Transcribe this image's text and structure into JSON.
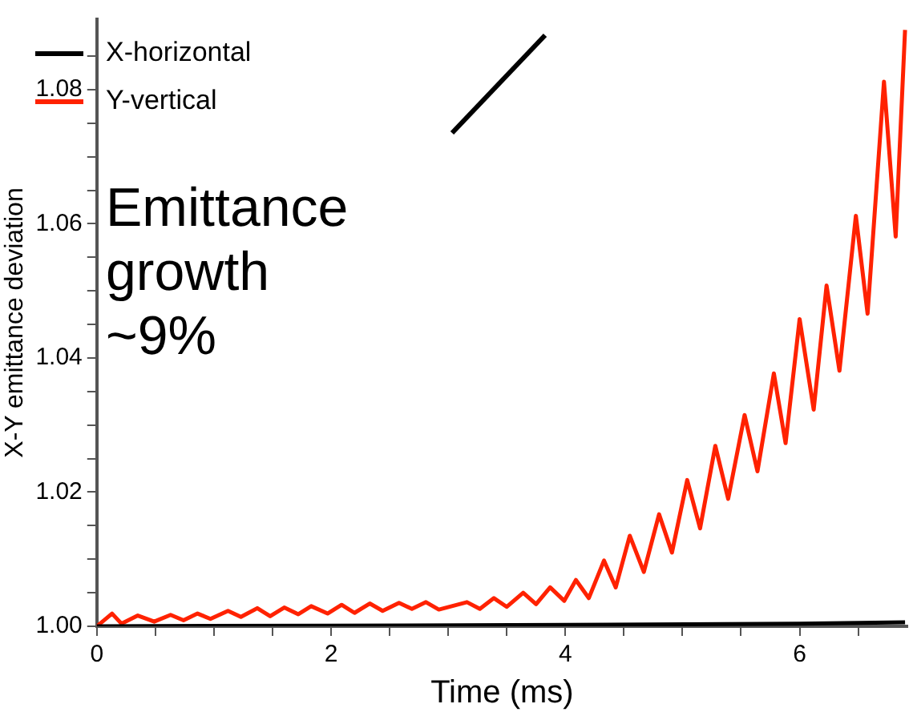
{
  "chart_data": {
    "type": "line",
    "xlabel": "Time (ms)",
    "ylabel": "X-Y emittance deviation",
    "annotations": [
      "Emittance growth ~9%"
    ],
    "legend": "top left",
    "grid": false,
    "marker": "none",
    "line_style": "solid",
    "xlim": [
      0,
      6.92
    ],
    "ylim": [
      1.0,
      1.0905
    ],
    "xticks": [
      0,
      {
        "value": 0.5,
        "label": null
      },
      {
        "value": 1,
        "label": null
      },
      {
        "value": 1.5,
        "label": null
      },
      2,
      {
        "value": 2.5,
        "label": null
      },
      {
        "value": 3,
        "label": null
      },
      {
        "value": 3.5,
        "label": null
      },
      4,
      {
        "value": 4.5,
        "label": null
      },
      {
        "value": 5,
        "label": null
      },
      {
        "value": 5.5,
        "label": null
      },
      6,
      {
        "value": 6.5,
        "label": null
      }
    ],
    "yticks": [
      {
        "value": 1.0,
        "label": "1.00"
      },
      {
        "value": 1.005,
        "label": null
      },
      {
        "value": 1.01,
        "label": null
      },
      {
        "value": 1.015,
        "label": null
      },
      {
        "value": 1.02,
        "label": "1.02"
      },
      {
        "value": 1.025,
        "label": null
      },
      {
        "value": 1.03,
        "label": null
      },
      {
        "value": 1.035,
        "label": null
      },
      {
        "value": 1.04,
        "label": "1.04"
      },
      {
        "value": 1.045,
        "label": null
      },
      {
        "value": 1.05,
        "label": null
      },
      {
        "value": 1.055,
        "label": null
      },
      {
        "value": 1.06,
        "label": "1.06"
      },
      {
        "value": 1.065,
        "label": null
      },
      {
        "value": 1.07,
        "label": null
      },
      {
        "value": 1.075,
        "label": null
      },
      {
        "value": 1.08,
        "label": "1.08"
      },
      {
        "value": 1.085,
        "label": null
      }
    ],
    "series": [
      {
        "name": "X-horizontal",
        "color": "#000000",
        "x": [
          0,
          2,
          4,
          6,
          6.9
        ],
        "values": [
          1.0,
          1.0001,
          1.0002,
          1.0004,
          1.0006
        ]
      },
      {
        "name": "Y-vertical",
        "color": "#ff2200",
        "x": [
          0,
          0.13,
          0.21,
          0.35,
          0.49,
          0.63,
          0.74,
          0.86,
          0.97,
          1.12,
          1.23,
          1.37,
          1.48,
          1.6,
          1.72,
          1.83,
          1.97,
          2.09,
          2.2,
          2.33,
          2.44,
          2.58,
          2.69,
          2.81,
          2.92,
          3.16,
          3.27,
          3.39,
          3.5,
          3.64,
          3.75,
          3.87,
          3.99,
          4.09,
          4.2,
          4.33,
          4.43,
          4.55,
          4.67,
          4.8,
          4.91,
          5.04,
          5.15,
          5.28,
          5.39,
          5.53,
          5.64,
          5.78,
          5.88,
          6.0,
          6.12,
          6.23,
          6.34,
          6.48,
          6.58,
          6.72,
          6.82,
          6.9
        ],
        "values": [
          1.0,
          1.0019,
          1.0004,
          1.0016,
          1.0007,
          1.0017,
          1.0009,
          1.0019,
          1.0011,
          1.0023,
          1.0014,
          1.0027,
          1.0015,
          1.0028,
          1.0018,
          1.003,
          1.0019,
          1.0032,
          1.002,
          1.0034,
          1.0023,
          1.0035,
          1.0026,
          1.0036,
          1.0025,
          1.0036,
          1.0026,
          1.0042,
          1.0029,
          1.005,
          1.0033,
          1.0058,
          1.0038,
          1.0069,
          1.0042,
          1.0098,
          1.0058,
          1.0135,
          1.0081,
          1.0167,
          1.011,
          1.0218,
          1.0146,
          1.0269,
          1.019,
          1.0315,
          1.0231,
          1.0377,
          1.0273,
          1.0458,
          1.0323,
          1.0508,
          1.0381,
          1.0612,
          1.0466,
          1.0812,
          1.0581,
          1.0889
        ]
      }
    ]
  }
}
